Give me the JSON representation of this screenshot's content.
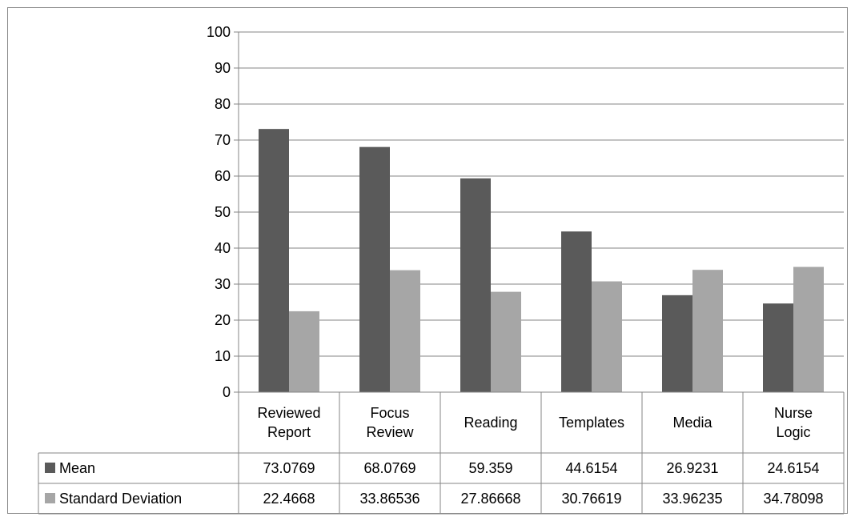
{
  "chart_data": {
    "type": "bar",
    "title": "",
    "xlabel": "",
    "ylabel": "",
    "ylim": [
      0,
      100
    ],
    "yticks": [
      "0",
      "10",
      "20",
      "30",
      "40",
      "50",
      "60",
      "70",
      "80",
      "90",
      "100"
    ],
    "grid": true,
    "legend": "data-table",
    "categories": [
      [
        "Reviewed",
        "Report"
      ],
      [
        "Focus",
        "Review"
      ],
      [
        "Reading"
      ],
      [
        "Templates"
      ],
      [
        "Media"
      ],
      [
        "Nurse",
        "Logic"
      ]
    ],
    "series": [
      {
        "name": "Mean",
        "color": "#5a5a5a",
        "values": [
          73.0769,
          68.0769,
          59.359,
          44.6154,
          26.9231,
          24.6154
        ],
        "labels": [
          "73.0769",
          "68.0769",
          "59.359",
          "44.6154",
          "26.9231",
          "24.6154"
        ]
      },
      {
        "name": "Standard Deviation",
        "color": "#a6a6a6",
        "values": [
          22.4668,
          33.86536,
          27.86668,
          30.76619,
          33.96235,
          34.78098
        ],
        "labels": [
          "22.4668",
          "33.86536",
          "27.86668",
          "30.76619",
          "33.96235",
          "34.78098"
        ]
      }
    ]
  }
}
